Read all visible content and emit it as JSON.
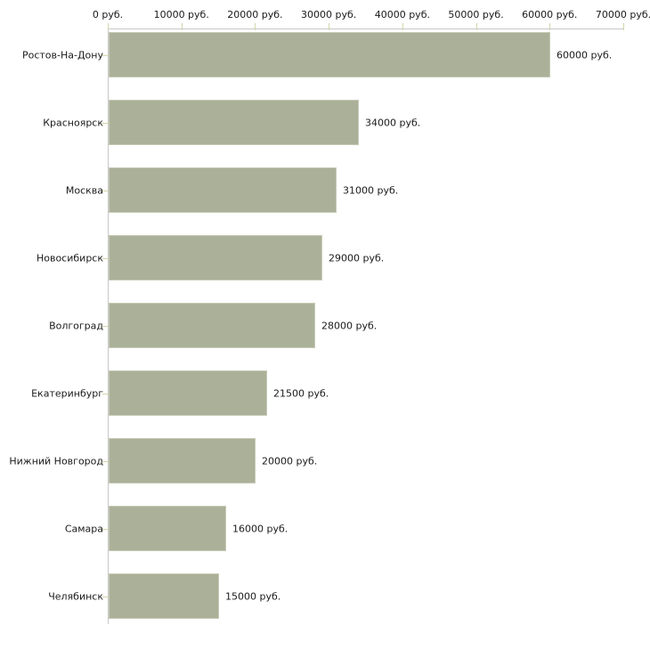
{
  "chart_data": {
    "type": "bar",
    "orientation": "horizontal",
    "title": "",
    "xlabel": "",
    "ylabel": "",
    "unit": "руб.",
    "categories": [
      "Ростов-На-Дону",
      "Красноярск",
      "Москва",
      "Новосибирск",
      "Волгоград",
      "Екатеринбург",
      "Нижний Новгород",
      "Самара",
      "Челябинск"
    ],
    "values": [
      60000,
      34000,
      31000,
      29000,
      28000,
      21500,
      20000,
      16000,
      15000
    ],
    "value_labels": [
      "60000 руб.",
      "34000 руб.",
      "31000 руб.",
      "29000 руб.",
      "28000 руб.",
      "21500 руб.",
      "20000 руб.",
      "16000 руб.",
      "15000 руб."
    ],
    "xlim": [
      0,
      70000
    ],
    "x_ticks": [
      0,
      10000,
      20000,
      30000,
      40000,
      50000,
      60000,
      70000
    ],
    "x_tick_labels": [
      "0 руб.",
      "10000 руб.",
      "20000 руб.",
      "30000 руб.",
      "40000 руб.",
      "50000 руб.",
      "60000 руб.",
      "70000 руб."
    ],
    "axis_position": "top",
    "grid": false,
    "legend": null,
    "colors": {
      "bar_fill": "#abb199",
      "bar_border": "#c6cab6",
      "axis_line": "#c8c8c8",
      "tick_mark": "#d4d6ab",
      "text": "#1a1a1a",
      "background": "#ffffff"
    }
  }
}
